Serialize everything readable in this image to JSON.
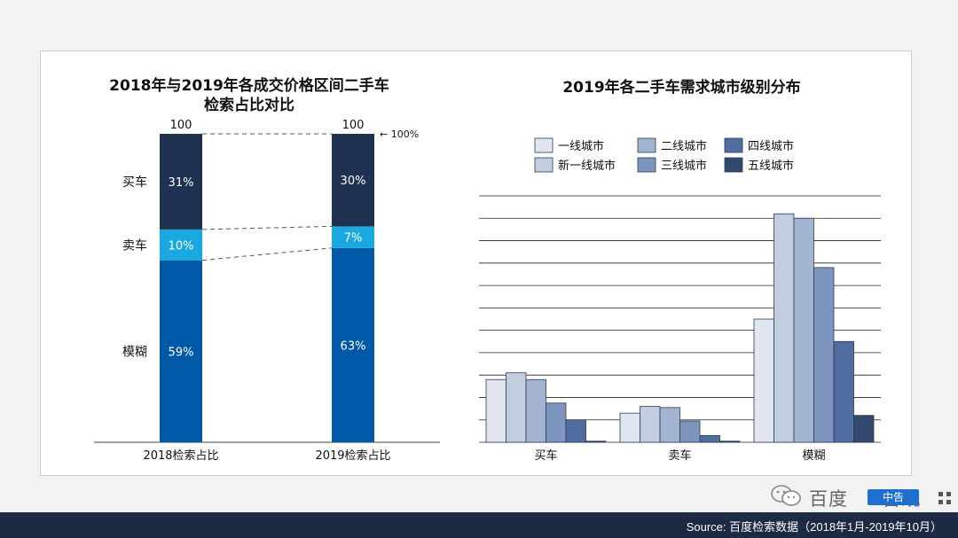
{
  "left_chart": {
    "title_line1": "2018年与2019年各成交价格区间二手车",
    "title_line2": "检索占比对比",
    "annotation_100pct": "← 100%"
  },
  "right_chart": {
    "title": "2019年各二手车需求城市级别分布"
  },
  "footer": {
    "source": "Source: 百度检索数据（2018年1月-2019年10月）"
  },
  "watermark": {
    "text": "百度",
    "text2": "告观",
    "badge": "中告",
    "brand_color": "#1f6fcf"
  },
  "colors": {
    "buy": "#1e3151",
    "sell": "#1aa8e0",
    "vague": "#0059a6",
    "tiers": [
      "#dfe6f0",
      "#c2cde0",
      "#a3b4d1",
      "#7e95bd",
      "#4f6d9e",
      "#33486d"
    ]
  },
  "chart_data": [
    {
      "type": "bar",
      "stacked": true,
      "title": "2018年与2019年各成交价格区间二手车检索占比对比",
      "categories": [
        "2018检索占比",
        "2019检索占比"
      ],
      "totals": [
        "100",
        "100"
      ],
      "series": [
        {
          "name": "模糊",
          "values": [
            59,
            63
          ],
          "labels": [
            "59%",
            "63%"
          ]
        },
        {
          "name": "卖车",
          "values": [
            10,
            7
          ],
          "labels": [
            "10%",
            "7%"
          ]
        },
        {
          "name": "买车",
          "values": [
            31,
            30
          ],
          "labels": [
            "31%",
            "30%"
          ]
        }
      ],
      "ylim": [
        0,
        100
      ],
      "grid": false
    },
    {
      "type": "bar",
      "title": "2019年各二手车需求城市级别分布",
      "categories": [
        "买车",
        "卖车",
        "模糊"
      ],
      "series": [
        {
          "name": "一线城市",
          "values": [
            2.8,
            1.3,
            5.5
          ]
        },
        {
          "name": "新一线城市",
          "values": [
            3.1,
            1.6,
            10.2
          ]
        },
        {
          "name": "二线城市",
          "values": [
            2.8,
            1.55,
            10.0
          ]
        },
        {
          "name": "三线城市",
          "values": [
            1.75,
            0.95,
            7.8
          ]
        },
        {
          "name": "四线城市",
          "values": [
            1.0,
            0.3,
            4.5
          ]
        },
        {
          "name": "五线城市",
          "values": [
            0.05,
            0.05,
            1.2
          ]
        }
      ],
      "ylim": [
        0,
        11
      ],
      "grid": true,
      "legend_position": "top"
    }
  ]
}
